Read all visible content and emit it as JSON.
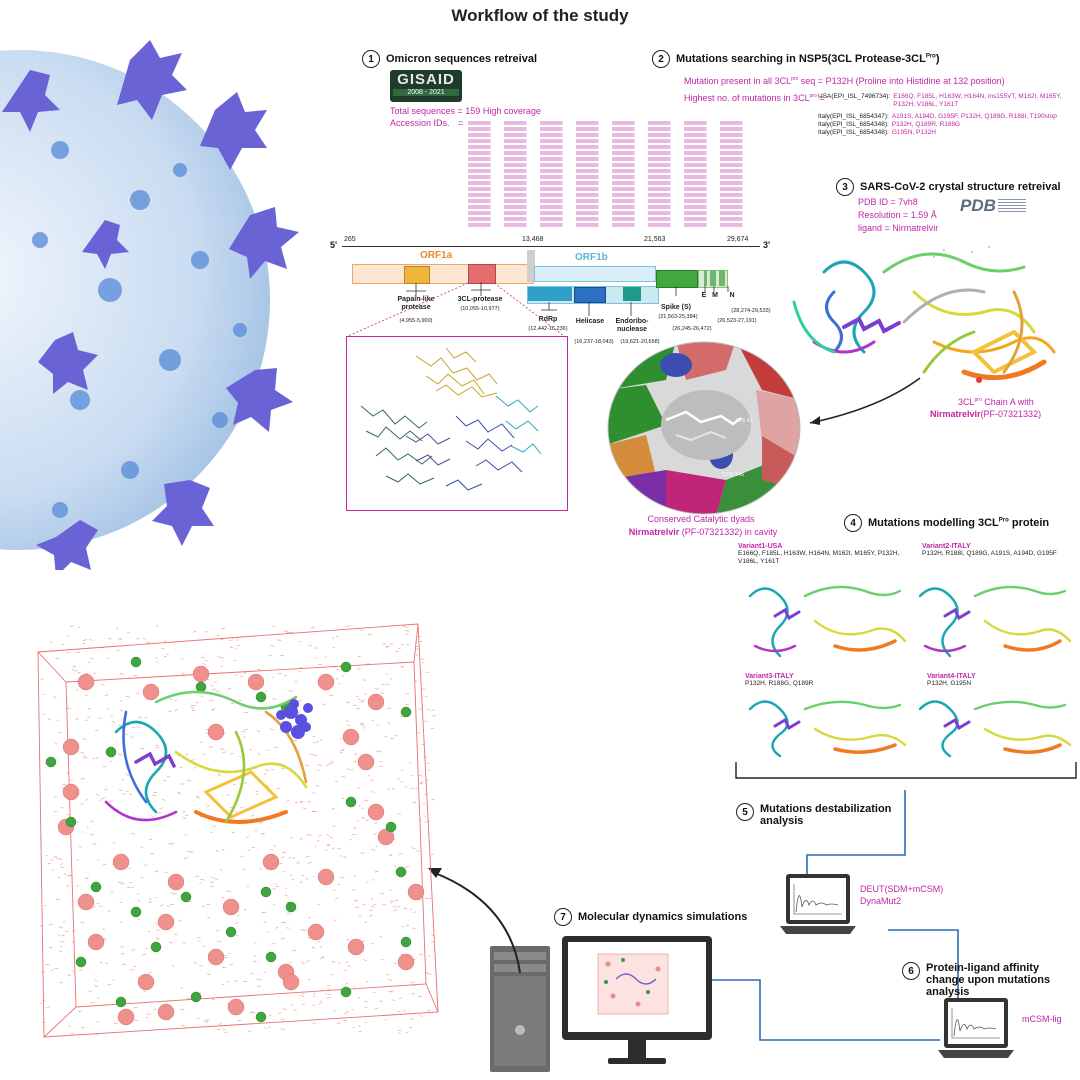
{
  "title": "Workflow of the study",
  "step1": {
    "num": "1",
    "heading": "Omicron sequences retreival",
    "logo_text": "GISAID",
    "logo_years": "2008 - 2021",
    "total": "Total sequences = 159 High coverage",
    "acc_label": "Accession IDs.",
    "acc_eq": "="
  },
  "step2": {
    "num": "2",
    "heading": "Mutations searching in NSP5(3CL Protease-3CL",
    "heading_sup": "Pro",
    "heading_end": ")",
    "present_label": "Mutation present in all 3CL",
    "present_sup": "pro",
    "present_value": " seq  = P132H (Proline into Histidine at 132 position)",
    "highest_label": "Highest no. of mutations in 3CL",
    "highest_sup": "pro",
    "highest_eq": " =",
    "rows": [
      {
        "id": "USA(EPI_ISL_7496734):",
        "muts": "E166Q, F185L, H163W, H164N, ins155VT, M162I, M165Y, P132H, V186L, Y161T"
      },
      {
        "id": "Italy(EPI_ISL_6854347):",
        "muts": "A191S, A194D, G195F, P132H, Q189G, R188I, T190stop"
      },
      {
        "id": "Italy(EPI_ISL_6854348):",
        "muts": "P132H, Q189R, R188G"
      },
      {
        "id": "Italy(EPI_ISL_6854348):",
        "muts": "G195N, P132H"
      }
    ]
  },
  "step3": {
    "num": "3",
    "heading": "SARS-CoV-2 crystal structure retreival",
    "pdb_id": "PDB ID = 7vh8",
    "resolution": "Resolution = 1.59 Å",
    "ligand": "ligand = Nirmatrelvir",
    "pdb_logo": "PDB",
    "chain_label": "3CL",
    "chain_sup": "pro",
    "chain_rest": " Chain A with",
    "chain_drug": "Nirmatrelvir",
    "chain_code": "(PF-07321332)"
  },
  "genome": {
    "five_prime": "5'",
    "three_prime": "3'",
    "pos": [
      "265",
      "13,468",
      "21,563",
      "29,674"
    ],
    "orf1a": "ORF1a",
    "orf1b": "ORF1b",
    "papain": "Papain-like protease",
    "papain_range": "(4,955-5,900)",
    "cl3": "3CL-protease",
    "cl3_range": "(10,055-10,977)",
    "rdrp": "RdRp",
    "rdrp_range": "(12,442-16,236)",
    "helicase": "Helicase",
    "helicase_range": "(16,237-18,043)",
    "endo": "Endoribo-nuclease",
    "endo_range": "(19,621-20,658)",
    "spike": "Spike (S)",
    "spike_range": "(21,563-25,384)",
    "e_label": "E",
    "m_label": "M",
    "n_label": "N",
    "em_range": "(26,245-26,472)",
    "m_range": "(26,523-27,191)",
    "n_range": "(28,274-29,533)"
  },
  "catalytic": {
    "his": "HIS 41",
    "cys": "CYS 145",
    "line1": "Conserved Catalytic dyads",
    "drug": "Nirmatrelvir",
    "line2": " (PF-07321332) in cavity"
  },
  "step4": {
    "num": "4",
    "heading": "Mutations modelling 3CL",
    "heading_sup": "Pro",
    "heading_end": " protein",
    "variants": [
      {
        "name": "Variant1-USA",
        "muts": "E166Q, F185L, H163W, H164N, M162I, M165Y, P132H, V186L, Y161T"
      },
      {
        "name": "Variant2-ITALY",
        "muts": "P132H, R188I, Q189G, A191S, A194D, G195F"
      },
      {
        "name": "Variant3-ITALY",
        "muts": "P132H, R188G, Q189R"
      },
      {
        "name": "Variant4-ITALY",
        "muts": "P132H, G195N"
      }
    ]
  },
  "step5": {
    "num": "5",
    "heading": "Mutations destabilization analysis",
    "tool1": "DEUT(SDM+mCSM)",
    "tool2": "DynaMut2"
  },
  "step6": {
    "num": "6",
    "heading": "Protein-ligand affinity change upon mutations analysis",
    "tool": "mCSM-lig"
  },
  "step7": {
    "num": "7",
    "heading": "Molecular dynamics simulations"
  },
  "colors": {
    "magenta": "#c026a6",
    "orf1a": "#f0a040",
    "orf1b": "#5ab4d6",
    "blue_line": "#2f6db5"
  }
}
